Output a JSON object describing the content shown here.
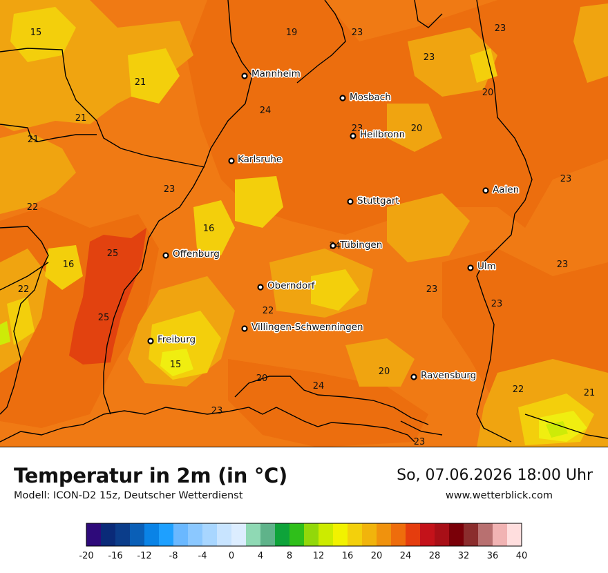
{
  "title": "Temperatur in 2m (in °C)",
  "model": "Modell: ICON-D2 15z, Deutscher Wetterdienst",
  "datetime": "So, 07.06.2026 18:00 Uhr",
  "website": "www.wetterblick.com",
  "cities": [
    {
      "name": "Mannheim",
      "label": "Mannheim"
    },
    {
      "name": "Mosbach",
      "label": "Mosbach"
    },
    {
      "name": "Heilbronn",
      "label": "Heilbronn"
    },
    {
      "name": "Karlsruhe",
      "label": "Karlsruhe"
    },
    {
      "name": "Stuttgart",
      "label": "Stuttgart"
    },
    {
      "name": "Aalen",
      "label": "Aalen"
    },
    {
      "name": "Tübingen",
      "label": "Tübingen"
    },
    {
      "name": "Offenburg",
      "label": "Offenburg"
    },
    {
      "name": "Ulm",
      "label": "Ulm"
    },
    {
      "name": "Oberndorf",
      "label": "Oberndorf"
    },
    {
      "name": "Villingen-Schwenningen",
      "label": "Villingen-Schwenningen"
    },
    {
      "name": "Freiburg",
      "label": "Freiburg"
    },
    {
      "name": "Ravensburg",
      "label": "Ravensburg"
    }
  ],
  "temperature_labels": [
    "15",
    "19",
    "23",
    "23",
    "23",
    "21",
    "20",
    "24",
    "21",
    "21",
    "20",
    "23",
    "22",
    "23",
    "23",
    "16",
    "25",
    "16",
    "22",
    "23",
    "23",
    "25",
    "22",
    "15",
    "20",
    "24",
    "20",
    "22",
    "21",
    "23",
    "23",
    "24",
    "23"
  ],
  "legend": {
    "colors": [
      "#2e0a7a",
      "#0a2a78",
      "#0b3d8a",
      "#0a5fb7",
      "#0a83e6",
      "#1ea0ff",
      "#6ab8ff",
      "#8bc8ff",
      "#a8d6ff",
      "#c8e4ff",
      "#dcedff",
      "#8fd9b4",
      "#5fb38a",
      "#0ea33a",
      "#2fbf1a",
      "#92d80a",
      "#cceb00",
      "#f2f200",
      "#f3d00c",
      "#f1b40c",
      "#f0920d",
      "#ee6d0c",
      "#e53d0e",
      "#c4121a",
      "#a80f17",
      "#7a0008",
      "#8b2d2d",
      "#b87070",
      "#f1b3b3",
      "#ffdede"
    ],
    "ticks": [
      "-20",
      "-16",
      "-12",
      "-8",
      "-4",
      "0",
      "4",
      "8",
      "12",
      "16",
      "20",
      "24",
      "28",
      "32",
      "36",
      "40"
    ]
  }
}
